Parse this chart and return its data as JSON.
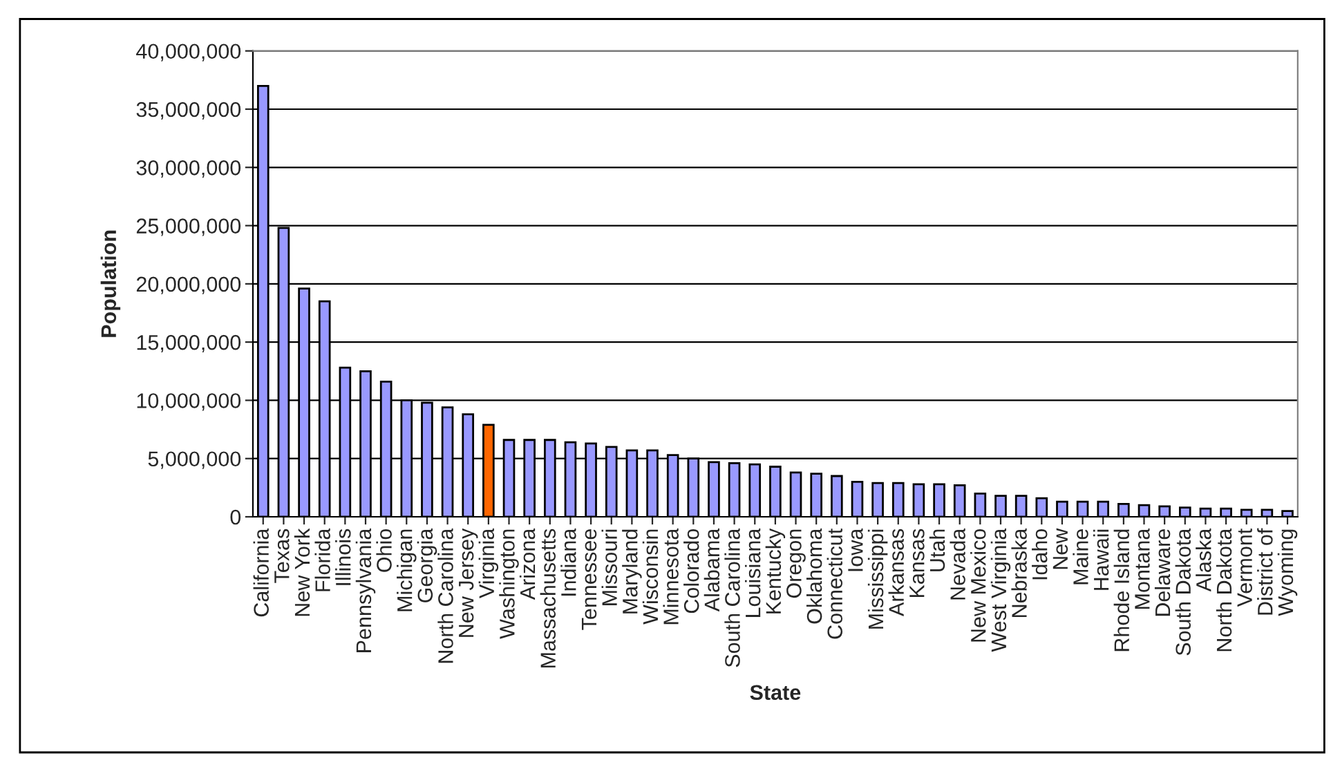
{
  "chart_data": {
    "type": "bar",
    "xlabel": "State",
    "ylabel": "Population",
    "categories": [
      "California",
      "Texas",
      "New York",
      "Florida",
      "Illinois",
      "Pennsylvania",
      "Ohio",
      "Michigan",
      "Georgia",
      "North Carolina",
      "New Jersey",
      "Virginia",
      "Washington",
      "Arizona",
      "Massachusetts",
      "Indiana",
      "Tennessee",
      "Missouri",
      "Maryland",
      "Wisconsin",
      "Minnesota",
      "Colorado",
      "Alabama",
      "South Carolina",
      "Louisiana",
      "Kentucky",
      "Oregon",
      "Oklahoma",
      "Connecticut",
      "Iowa",
      "Mississippi",
      "Arkansas",
      "Kansas",
      "Utah",
      "Nevada",
      "New Mexico",
      "West Virginia",
      "Nebraska",
      "Idaho",
      "New",
      "Maine",
      "Hawaii",
      "Rhode Island",
      "Montana",
      "Delaware",
      "South Dakota",
      "Alaska",
      "North Dakota",
      "Vermont",
      "District of",
      "Wyoming"
    ],
    "values": [
      37000000,
      24800000,
      19600000,
      18500000,
      12800000,
      12500000,
      11600000,
      10000000,
      9800000,
      9400000,
      8800000,
      7900000,
      6600000,
      6600000,
      6600000,
      6400000,
      6300000,
      6000000,
      5700000,
      5700000,
      5300000,
      5000000,
      4700000,
      4600000,
      4500000,
      4300000,
      3800000,
      3700000,
      3500000,
      3000000,
      2900000,
      2900000,
      2800000,
      2800000,
      2700000,
      2000000,
      1800000,
      1800000,
      1600000,
      1300000,
      1300000,
      1300000,
      1100000,
      1000000,
      900000,
      800000,
      700000,
      700000,
      600000,
      600000,
      500000
    ],
    "colors": [
      "#9999ff",
      "#9999ff",
      "#9999ff",
      "#9999ff",
      "#9999ff",
      "#9999ff",
      "#9999ff",
      "#9999ff",
      "#9999ff",
      "#9999ff",
      "#9999ff",
      "#ff6600",
      "#9999ff",
      "#9999ff",
      "#9999ff",
      "#9999ff",
      "#9999ff",
      "#9999ff",
      "#9999ff",
      "#9999ff",
      "#9999ff",
      "#9999ff",
      "#9999ff",
      "#9999ff",
      "#9999ff",
      "#9999ff",
      "#9999ff",
      "#9999ff",
      "#9999ff",
      "#9999ff",
      "#9999ff",
      "#9999ff",
      "#9999ff",
      "#9999ff",
      "#9999ff",
      "#9999ff",
      "#9999ff",
      "#9999ff",
      "#9999ff",
      "#9999ff",
      "#9999ff",
      "#9999ff",
      "#9999ff",
      "#9999ff",
      "#9999ff",
      "#9999ff",
      "#9999ff",
      "#9999ff",
      "#9999ff",
      "#9999ff",
      "#9999ff"
    ],
    "ylim": [
      0,
      40000000
    ],
    "yticks": [
      {
        "value": 0,
        "label": "0"
      },
      {
        "value": 5000000,
        "label": "5,000,000"
      },
      {
        "value": 10000000,
        "label": "10,000,000"
      },
      {
        "value": 15000000,
        "label": "15,000,000"
      },
      {
        "value": 20000000,
        "label": "20,000,000"
      },
      {
        "value": 25000000,
        "label": "25,000,000"
      },
      {
        "value": 30000000,
        "label": "30,000,000"
      },
      {
        "value": 35000000,
        "label": "35,000,000"
      },
      {
        "value": 40000000,
        "label": "40,000,000"
      }
    ],
    "grid": "y",
    "legend": false
  }
}
